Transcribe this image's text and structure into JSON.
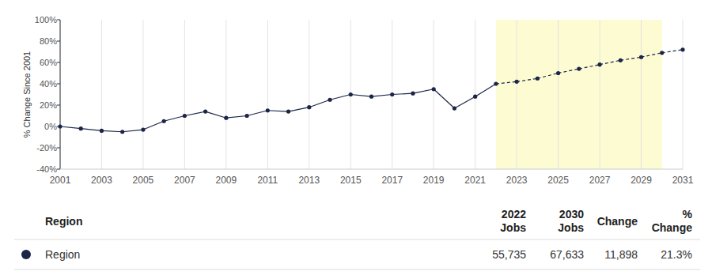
{
  "chart_data": {
    "type": "line",
    "y_label": "% Change Since 2001",
    "x": [
      2001,
      2002,
      2003,
      2004,
      2005,
      2006,
      2007,
      2008,
      2009,
      2010,
      2011,
      2012,
      2013,
      2014,
      2015,
      2016,
      2017,
      2018,
      2019,
      2020,
      2021,
      2022,
      2023,
      2024,
      2025,
      2026,
      2027,
      2028,
      2029,
      2030,
      2031
    ],
    "series": [
      {
        "name": "Region",
        "color": "#1b2547",
        "marker": "circle",
        "values": [
          0,
          -2,
          -4,
          -5,
          -3,
          5,
          10,
          14,
          8,
          10,
          15,
          14,
          18,
          25,
          30,
          28,
          30,
          31,
          35,
          17,
          28,
          40,
          42,
          45,
          50,
          54,
          58,
          62,
          65,
          69,
          72
        ]
      }
    ],
    "projection_range": [
      2022,
      2030
    ],
    "xlim": [
      2001,
      2031
    ],
    "xticks": [
      2001,
      2003,
      2005,
      2007,
      2009,
      2011,
      2013,
      2015,
      2017,
      2019,
      2021,
      2023,
      2025,
      2027,
      2029,
      2031
    ],
    "ylim": [
      -40,
      100
    ],
    "yticks": [
      {
        "value": -40,
        "label": "-40%"
      },
      {
        "value": -20,
        "label": "-20%"
      },
      {
        "value": 0,
        "label": "0%"
      },
      {
        "value": 20,
        "label": "20%"
      },
      {
        "value": 40,
        "label": "40%"
      },
      {
        "value": 60,
        "label": "60%"
      },
      {
        "value": 80,
        "label": "80%"
      },
      {
        "value": 100,
        "label": "100%"
      }
    ],
    "grid": true
  },
  "table": {
    "columns": [
      [
        "Region"
      ],
      [
        "2022",
        "Jobs"
      ],
      [
        "2030",
        "Jobs"
      ],
      [
        "Change"
      ],
      [
        "%",
        "Change"
      ]
    ],
    "rows": [
      [
        "Region",
        "55,735",
        "67,633",
        "11,898",
        "21.3%"
      ]
    ]
  }
}
